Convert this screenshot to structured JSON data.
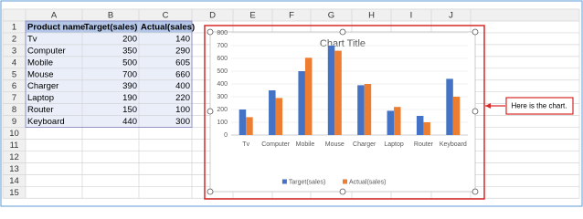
{
  "spreadsheet": {
    "column_headers": [
      "A",
      "B",
      "C",
      "D",
      "E",
      "F",
      "G",
      "H",
      "I",
      "J"
    ],
    "row_numbers": [
      1,
      2,
      3,
      4,
      5,
      6,
      7,
      8,
      9,
      10,
      11,
      12,
      13,
      14,
      15
    ],
    "table": {
      "header": [
        "Product name",
        "Target(sales)",
        "Actual(sales)"
      ],
      "rows": [
        [
          "Tv",
          200,
          140
        ],
        [
          "Computer",
          350,
          290
        ],
        [
          "Mobile",
          500,
          605
        ],
        [
          "Mouse",
          700,
          660
        ],
        [
          "Charger",
          390,
          400
        ],
        [
          "Laptop",
          190,
          220
        ],
        [
          "Router",
          150,
          100
        ],
        [
          "Keyboard",
          440,
          300
        ]
      ]
    }
  },
  "chart_data": {
    "type": "bar",
    "title": "Chart Title",
    "categories": [
      "Tv",
      "Computer",
      "Mobile",
      "Mouse",
      "Charger",
      "Laptop",
      "Router",
      "Keyboard"
    ],
    "series": [
      {
        "name": "Target(sales)",
        "color": "#4472c4",
        "values": [
          200,
          350,
          500,
          700,
          390,
          190,
          150,
          440
        ]
      },
      {
        "name": "Actual(sales)",
        "color": "#ed7d31",
        "values": [
          140,
          290,
          605,
          660,
          400,
          220,
          100,
          300
        ]
      }
    ],
    "ylim": [
      0,
      800
    ],
    "yticks": [
      0,
      100,
      200,
      300,
      400,
      500,
      600,
      700,
      800
    ],
    "grid": true,
    "legend": "bottom"
  },
  "callout": {
    "text": "Here is the chart."
  }
}
